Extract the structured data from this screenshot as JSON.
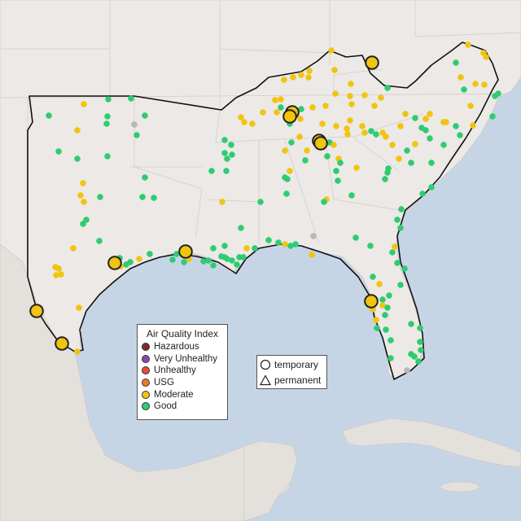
{
  "legend": {
    "title": "Air Quality Index",
    "categories": [
      {
        "label": "Hazardous",
        "color": "#7e2a2a"
      },
      {
        "label": "Very Unhealthy",
        "color": "#8e44ad"
      },
      {
        "label": "Unhealthy",
        "color": "#e74c3c"
      },
      {
        "label": "USG",
        "color": "#e67e22"
      },
      {
        "label": "Moderate",
        "color": "#f1c40f"
      },
      {
        "label": "Good",
        "color": "#2ecc71"
      }
    ]
  },
  "monitor_types": {
    "temporary": "temporary",
    "permanent": "permanent"
  },
  "colors": {
    "water": "#c6d5e6",
    "land": "#ece9e6",
    "moderate": "#f1c40f",
    "good": "#2ecc71",
    "inactive": "#b8b8b8"
  }
}
